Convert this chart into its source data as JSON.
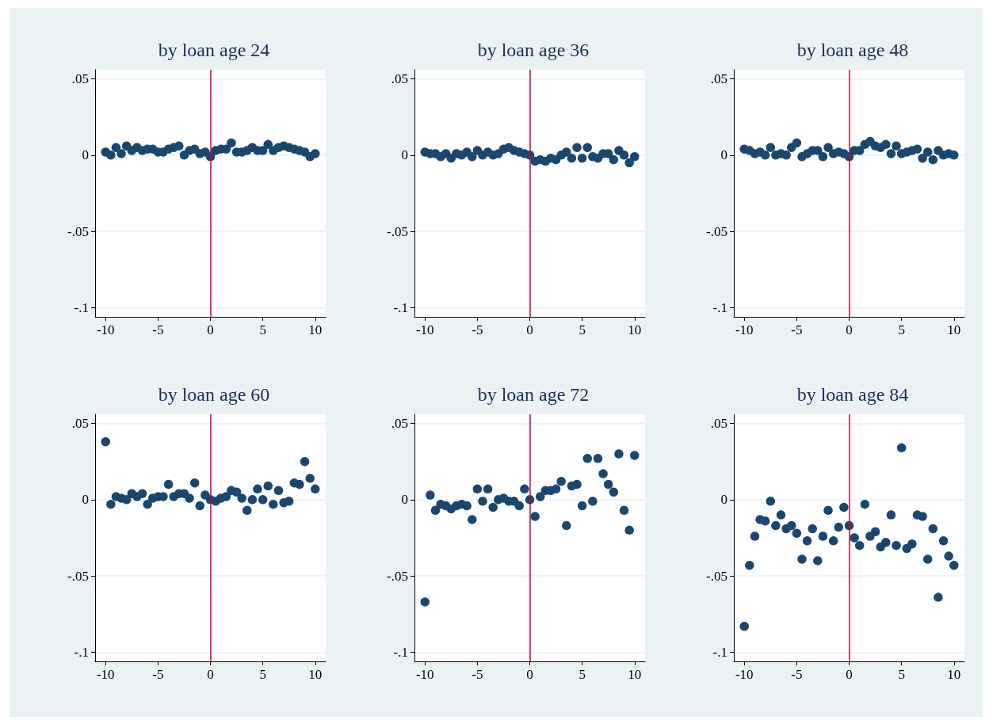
{
  "chart_data": [
    {
      "type": "scatter",
      "title": "by loan age 24",
      "color": "#1a476f",
      "marker": "circle",
      "grid": "y",
      "xlim": [
        -11,
        11
      ],
      "xticks": [
        -10,
        -5,
        0,
        5,
        10
      ],
      "ylim": [
        -0.106,
        0.056
      ],
      "yticks": [
        {
          "value": 0.05,
          "label": ".05"
        },
        {
          "value": 0,
          "label": "0"
        },
        {
          "value": -0.05,
          "label": "-.05"
        },
        {
          "value": -0.1,
          "label": "-.1"
        }
      ],
      "ref_lines": [
        {
          "axis": "x",
          "value": 0,
          "color": "#c10534"
        }
      ],
      "x": [
        -10,
        -9.5,
        -9,
        -8.5,
        -8,
        -7.5,
        -7,
        -6.5,
        -6,
        -5.5,
        -5,
        -4.5,
        -4,
        -3.5,
        -3,
        -2.5,
        -2,
        -1.5,
        -1,
        -0.5,
        0,
        0.5,
        1,
        1.5,
        2,
        2.5,
        3,
        3.5,
        4,
        4.5,
        5,
        5.5,
        6,
        6.5,
        7,
        7.5,
        8,
        8.5,
        9,
        9.5,
        10
      ],
      "values": [
        0.002,
        0.0,
        0.005,
        0.001,
        0.006,
        0.003,
        0.005,
        0.003,
        0.004,
        0.004,
        0.002,
        0.002,
        0.004,
        0.005,
        0.006,
        0.0,
        0.003,
        0.004,
        0.001,
        0.002,
        -0.001,
        0.003,
        0.004,
        0.004,
        0.008,
        0.002,
        0.002,
        0.003,
        0.005,
        0.003,
        0.003,
        0.007,
        0.003,
        0.005,
        0.006,
        0.005,
        0.004,
        0.003,
        0.002,
        -0.001,
        0.001
      ]
    },
    {
      "type": "scatter",
      "title": "by loan age 36",
      "color": "#1a476f",
      "marker": "circle",
      "grid": "y",
      "xlim": [
        -11,
        11
      ],
      "xticks": [
        -10,
        -5,
        0,
        5,
        10
      ],
      "ylim": [
        -0.106,
        0.056
      ],
      "yticks": [
        {
          "value": 0.05,
          "label": ".05"
        },
        {
          "value": 0,
          "label": "0"
        },
        {
          "value": -0.05,
          "label": "-.05"
        },
        {
          "value": -0.1,
          "label": "-.1"
        }
      ],
      "ref_lines": [
        {
          "axis": "x",
          "value": 0,
          "color": "#c10534"
        }
      ],
      "x": [
        -10,
        -9.5,
        -9,
        -8.5,
        -8,
        -7.5,
        -7,
        -6.5,
        -6,
        -5.5,
        -5,
        -4.5,
        -4,
        -3.5,
        -3,
        -2.5,
        -2,
        -1.5,
        -1,
        -0.5,
        0,
        0.5,
        1,
        1.5,
        2,
        2.5,
        3,
        3.5,
        4,
        4.5,
        5,
        5.5,
        6,
        6.5,
        7,
        7.5,
        8,
        8.5,
        9,
        9.5,
        10
      ],
      "values": [
        0.002,
        0.001,
        0.001,
        -0.001,
        0.001,
        -0.002,
        0.001,
        0.0,
        0.002,
        -0.001,
        0.003,
        0.0,
        0.002,
        0.0,
        0.001,
        0.004,
        0.005,
        0.003,
        0.002,
        0.001,
        0.0,
        -0.004,
        -0.003,
        -0.004,
        -0.002,
        -0.003,
        0.0,
        0.002,
        -0.002,
        0.005,
        -0.002,
        0.005,
        -0.001,
        -0.002,
        0.001,
        0.001,
        -0.003,
        0.003,
        0.0,
        -0.005,
        -0.001
      ]
    },
    {
      "type": "scatter",
      "title": "by loan age 48",
      "color": "#1a476f",
      "marker": "circle",
      "grid": "y",
      "xlim": [
        -11,
        11
      ],
      "xticks": [
        -10,
        -5,
        0,
        5,
        10
      ],
      "ylim": [
        -0.106,
        0.056
      ],
      "yticks": [
        {
          "value": 0.05,
          "label": ".05"
        },
        {
          "value": 0,
          "label": "0"
        },
        {
          "value": -0.05,
          "label": "-.05"
        },
        {
          "value": -0.1,
          "label": "-.1"
        }
      ],
      "ref_lines": [
        {
          "axis": "x",
          "value": 0,
          "color": "#c10534"
        }
      ],
      "x": [
        -10,
        -9.5,
        -9,
        -8.5,
        -8,
        -7.5,
        -7,
        -6.5,
        -6,
        -5.5,
        -5,
        -4.5,
        -4,
        -3.5,
        -3,
        -2.5,
        -2,
        -1.5,
        -1,
        -0.5,
        0,
        0.5,
        1,
        1.5,
        2,
        2.5,
        3,
        3.5,
        4,
        4.5,
        5,
        5.5,
        6,
        6.5,
        7,
        7.5,
        8,
        8.5,
        9,
        9.5,
        10
      ],
      "values": [
        0.004,
        0.003,
        0.001,
        0.002,
        0.0,
        0.005,
        0.0,
        0.001,
        0.0,
        0.005,
        0.008,
        -0.001,
        0.001,
        0.003,
        0.003,
        -0.001,
        0.005,
        0.001,
        0.002,
        0.001,
        -0.001,
        0.003,
        0.003,
        0.007,
        0.009,
        0.006,
        0.005,
        0.007,
        0.001,
        0.006,
        0.001,
        0.002,
        0.003,
        0.004,
        -0.002,
        0.002,
        -0.003,
        0.003,
        0.0,
        0.001,
        0.0
      ]
    },
    {
      "type": "scatter",
      "title": "by loan age 60",
      "color": "#1a476f",
      "marker": "circle",
      "grid": "y",
      "xlim": [
        -11,
        11
      ],
      "xticks": [
        -10,
        -5,
        0,
        5,
        10
      ],
      "ylim": [
        -0.106,
        0.056
      ],
      "yticks": [
        {
          "value": 0.05,
          "label": ".05"
        },
        {
          "value": 0,
          "label": "0"
        },
        {
          "value": -0.05,
          "label": "-.05"
        },
        {
          "value": -0.1,
          "label": "-.1"
        }
      ],
      "ref_lines": [
        {
          "axis": "x",
          "value": 0,
          "color": "#c10534"
        }
      ],
      "x": [
        -10,
        -9.5,
        -9,
        -8.5,
        -8,
        -7.5,
        -7,
        -6.5,
        -6,
        -5.5,
        -5,
        -4.5,
        -4,
        -3.5,
        -3,
        -2.5,
        -2,
        -1.5,
        -1,
        -0.5,
        0,
        0.5,
        1,
        1.5,
        2,
        2.5,
        3,
        3.5,
        4,
        4.5,
        5,
        5.5,
        6,
        6.5,
        7,
        7.5,
        8,
        8.5,
        9,
        9.5,
        10
      ],
      "values": [
        0.038,
        -0.003,
        0.002,
        0.001,
        0.0,
        0.004,
        0.002,
        0.004,
        -0.003,
        0.001,
        0.002,
        0.002,
        0.01,
        0.002,
        0.004,
        0.004,
        0.001,
        0.011,
        -0.004,
        0.003,
        0.0,
        -0.001,
        0.001,
        0.002,
        0.006,
        0.005,
        0.001,
        -0.007,
        0.0,
        0.007,
        0.0,
        0.009,
        -0.003,
        0.006,
        -0.002,
        -0.001,
        0.011,
        0.01,
        0.025,
        0.014,
        0.007
      ]
    },
    {
      "type": "scatter",
      "title": "by loan age 72",
      "color": "#1a476f",
      "marker": "circle",
      "grid": "y",
      "xlim": [
        -11,
        11
      ],
      "xticks": [
        -10,
        -5,
        0,
        5,
        10
      ],
      "ylim": [
        -0.106,
        0.056
      ],
      "yticks": [
        {
          "value": 0.05,
          "label": ".05"
        },
        {
          "value": 0,
          "label": "0"
        },
        {
          "value": -0.05,
          "label": "-.05"
        },
        {
          "value": -0.1,
          "label": "-.1"
        }
      ],
      "ref_lines": [
        {
          "axis": "x",
          "value": 0,
          "color": "#c10534"
        }
      ],
      "x": [
        -10,
        -9.5,
        -9,
        -8.5,
        -8,
        -7.5,
        -7,
        -6.5,
        -6,
        -5.5,
        -5,
        -4.5,
        -4,
        -3.5,
        -3,
        -2.5,
        -2,
        -1.5,
        -1,
        -0.5,
        0,
        0.5,
        1,
        1.5,
        2,
        2.5,
        3,
        3.5,
        4,
        4.5,
        5,
        5.5,
        6,
        6.5,
        7,
        7.5,
        8,
        8.5,
        9,
        9.5,
        10
      ],
      "values": [
        -0.067,
        0.003,
        -0.007,
        -0.003,
        -0.004,
        -0.006,
        -0.004,
        -0.003,
        -0.004,
        -0.013,
        0.007,
        -0.001,
        0.007,
        -0.005,
        0.0,
        0.001,
        -0.001,
        -0.001,
        -0.004,
        0.007,
        0.0,
        -0.011,
        0.002,
        0.006,
        0.006,
        0.007,
        0.012,
        -0.017,
        0.009,
        0.01,
        -0.004,
        0.027,
        -0.001,
        0.027,
        0.017,
        0.01,
        0.005,
        0.03,
        -0.007,
        -0.02,
        0.029
      ]
    },
    {
      "type": "scatter",
      "title": "by loan age 84",
      "color": "#1a476f",
      "marker": "circle",
      "grid": "y",
      "xlim": [
        -11,
        11
      ],
      "xticks": [
        -10,
        -5,
        0,
        5,
        10
      ],
      "ylim": [
        -0.106,
        0.056
      ],
      "yticks": [
        {
          "value": 0.05,
          "label": ".05"
        },
        {
          "value": 0,
          "label": "0"
        },
        {
          "value": -0.05,
          "label": "-.05"
        },
        {
          "value": -0.1,
          "label": "-.1"
        }
      ],
      "ref_lines": [
        {
          "axis": "x",
          "value": 0,
          "color": "#c10534"
        }
      ],
      "x": [
        -10,
        -9.5,
        -9,
        -8.5,
        -8,
        -7.5,
        -7,
        -6.5,
        -6,
        -5.5,
        -5,
        -4.5,
        -4,
        -3.5,
        -3,
        -2.5,
        -2,
        -1.5,
        -1,
        -0.5,
        0,
        0.5,
        1,
        1.5,
        2,
        2.5,
        3,
        3.5,
        4,
        4.5,
        5,
        5.5,
        6,
        6.5,
        7,
        7.5,
        8,
        8.5,
        9,
        9.5,
        10
      ],
      "values": [
        -0.083,
        -0.043,
        -0.024,
        -0.013,
        -0.014,
        -0.001,
        -0.017,
        -0.01,
        -0.019,
        -0.017,
        -0.022,
        -0.039,
        -0.027,
        -0.019,
        -0.04,
        -0.024,
        -0.007,
        -0.027,
        -0.018,
        -0.005,
        -0.017,
        -0.025,
        -0.03,
        -0.003,
        -0.024,
        -0.021,
        -0.031,
        -0.028,
        -0.01,
        -0.03,
        0.034,
        -0.032,
        -0.029,
        -0.01,
        -0.011,
        -0.039,
        -0.019,
        -0.064,
        -0.027,
        -0.037,
        -0.043
      ]
    }
  ]
}
